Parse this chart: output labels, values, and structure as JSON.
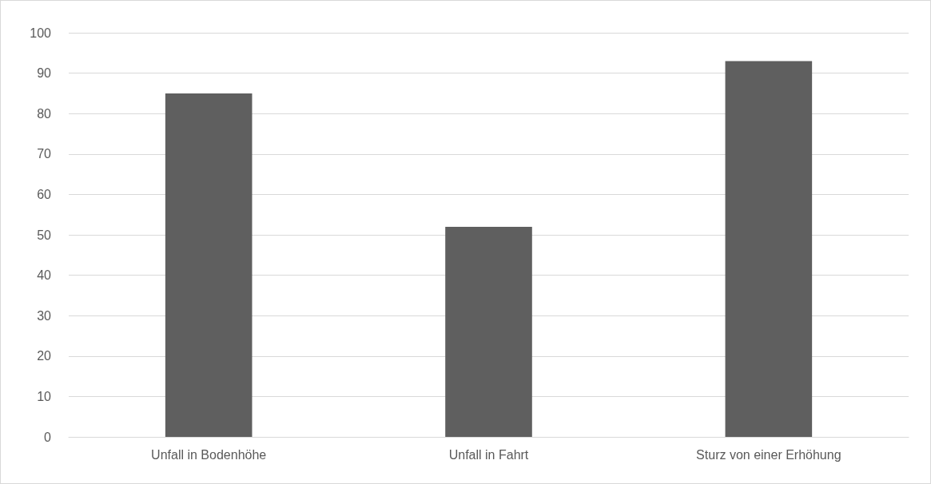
{
  "chart_data": {
    "type": "bar",
    "categories": [
      "Unfall in Bodenhöhe",
      "Unfall in Fahrt",
      "Sturz von einer Erhöhung"
    ],
    "values": [
      85,
      52,
      93
    ],
    "color": "#5f5f5f",
    "ylim": [
      0,
      100
    ],
    "yticks": [
      0,
      10,
      20,
      30,
      40,
      50,
      60,
      70,
      80,
      90,
      100
    ],
    "grid": "y"
  }
}
